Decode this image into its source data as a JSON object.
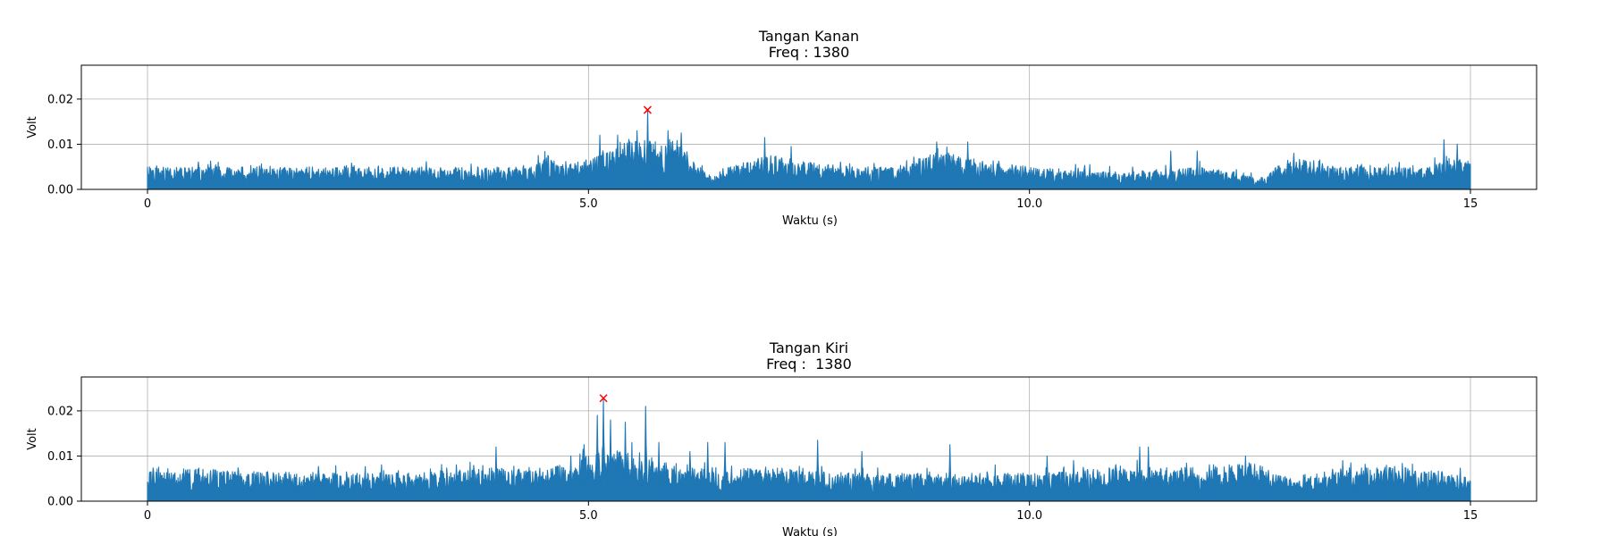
{
  "chart_data": [
    {
      "type": "line",
      "title": "Tangan Kanan",
      "subtitle": "Freq : 1380",
      "xlabel": "Waktu (s)",
      "ylabel": "Volt",
      "xlim": [
        -0.75,
        15.75
      ],
      "ylim": [
        0,
        0.0275
      ],
      "xticks": [
        0,
        5,
        10,
        15
      ],
      "xtick_labels": [
        "0",
        "5.0",
        "10.0",
        "15"
      ],
      "yticks": [
        0,
        0.01,
        0.02
      ],
      "ytick_labels": [
        "0.00",
        "0.01",
        "0.02"
      ],
      "grid": true,
      "line_color": "#1f77b4",
      "marker_color": "#ff0000",
      "series": [
        {
          "baseline": 0.004,
          "noise_amplitude": 0.0015,
          "x_start": 0,
          "x_end": 15,
          "envelope": [
            [
              0,
              0.004
            ],
            [
              4.4,
              0.004
            ],
            [
              4.5,
              0.007
            ],
            [
              4.7,
              0.004
            ],
            [
              5.1,
              0.006
            ],
            [
              5.4,
              0.009
            ],
            [
              5.67,
              0.009
            ],
            [
              6.0,
              0.009
            ],
            [
              6.2,
              0.005
            ],
            [
              6.4,
              0.002
            ],
            [
              6.6,
              0.004
            ],
            [
              7.0,
              0.006
            ],
            [
              7.5,
              0.005
            ],
            [
              8.0,
              0.004
            ],
            [
              8.5,
              0.004
            ],
            [
              9.0,
              0.007
            ],
            [
              9.5,
              0.005
            ],
            [
              10.0,
              0.004
            ],
            [
              11.0,
              0.003
            ],
            [
              12.0,
              0.004
            ],
            [
              12.6,
              0.002
            ],
            [
              13.0,
              0.006
            ],
            [
              13.5,
              0.004
            ],
            [
              14.5,
              0.004
            ],
            [
              14.8,
              0.006
            ],
            [
              15,
              0.005
            ]
          ],
          "peaks": [
            [
              4.43,
              0.0075
            ],
            [
              5.13,
              0.012
            ],
            [
              5.33,
              0.012
            ],
            [
              5.55,
              0.013
            ],
            [
              5.67,
              0.0175
            ],
            [
              5.9,
              0.013
            ],
            [
              6.05,
              0.0125
            ],
            [
              7.0,
              0.0115
            ],
            [
              7.3,
              0.0095
            ],
            [
              8.95,
              0.0105
            ],
            [
              9.3,
              0.0105
            ],
            [
              11.6,
              0.0085
            ],
            [
              11.9,
              0.0085
            ],
            [
              13.0,
              0.008
            ],
            [
              14.7,
              0.011
            ],
            [
              14.85,
              0.01
            ]
          ]
        }
      ],
      "annotations": [
        {
          "type": "max_marker",
          "symbol": "x",
          "x": 5.67,
          "y": 0.0176
        }
      ]
    },
    {
      "type": "line",
      "title": "Tangan Kiri",
      "subtitle": "Freq :  1380",
      "xlabel": "Waktu (s)",
      "ylabel": "Volt",
      "xlim": [
        -0.75,
        15.75
      ],
      "ylim": [
        0,
        0.0275
      ],
      "xticks": [
        0,
        5,
        10,
        15
      ],
      "xtick_labels": [
        "0",
        "5.0",
        "10.0",
        "15"
      ],
      "yticks": [
        0,
        0.01,
        0.02
      ],
      "ytick_labels": [
        "0.00",
        "0.01",
        "0.02"
      ],
      "grid": true,
      "line_color": "#1f77b4",
      "marker_color": "#ff0000",
      "series": [
        {
          "baseline": 0.005,
          "noise_amplitude": 0.002,
          "x_start": 0,
          "x_end": 15,
          "envelope": [
            [
              0,
              0.006
            ],
            [
              1.0,
              0.0055
            ],
            [
              2.0,
              0.005
            ],
            [
              3.0,
              0.005
            ],
            [
              4.0,
              0.006
            ],
            [
              4.5,
              0.0055
            ],
            [
              5.0,
              0.008
            ],
            [
              5.17,
              0.01
            ],
            [
              5.5,
              0.009
            ],
            [
              5.9,
              0.007
            ],
            [
              6.2,
              0.006
            ],
            [
              7.0,
              0.006
            ],
            [
              8.0,
              0.005
            ],
            [
              9.0,
              0.005
            ],
            [
              10.0,
              0.005
            ],
            [
              11.0,
              0.006
            ],
            [
              12.0,
              0.006
            ],
            [
              12.5,
              0.007
            ],
            [
              13.0,
              0.004
            ],
            [
              13.5,
              0.006
            ],
            [
              14.5,
              0.006
            ],
            [
              15,
              0.004
            ]
          ],
          "peaks": [
            [
              3.95,
              0.012
            ],
            [
              4.8,
              0.01
            ],
            [
              4.95,
              0.0125
            ],
            [
              5.1,
              0.019
            ],
            [
              5.17,
              0.0225
            ],
            [
              5.25,
              0.018
            ],
            [
              5.42,
              0.0175
            ],
            [
              5.65,
              0.021
            ],
            [
              5.8,
              0.013
            ],
            [
              6.15,
              0.011
            ],
            [
              6.35,
              0.013
            ],
            [
              6.55,
              0.013
            ],
            [
              7.6,
              0.0135
            ],
            [
              8.1,
              0.011
            ],
            [
              9.1,
              0.0125
            ],
            [
              10.2,
              0.01
            ],
            [
              10.5,
              0.009
            ],
            [
              11.25,
              0.012
            ],
            [
              11.35,
              0.012
            ],
            [
              12.45,
              0.01
            ],
            [
              13.55,
              0.009
            ]
          ]
        }
      ],
      "annotations": [
        {
          "type": "max_marker",
          "symbol": "x",
          "x": 5.17,
          "y": 0.0228
        }
      ]
    }
  ]
}
